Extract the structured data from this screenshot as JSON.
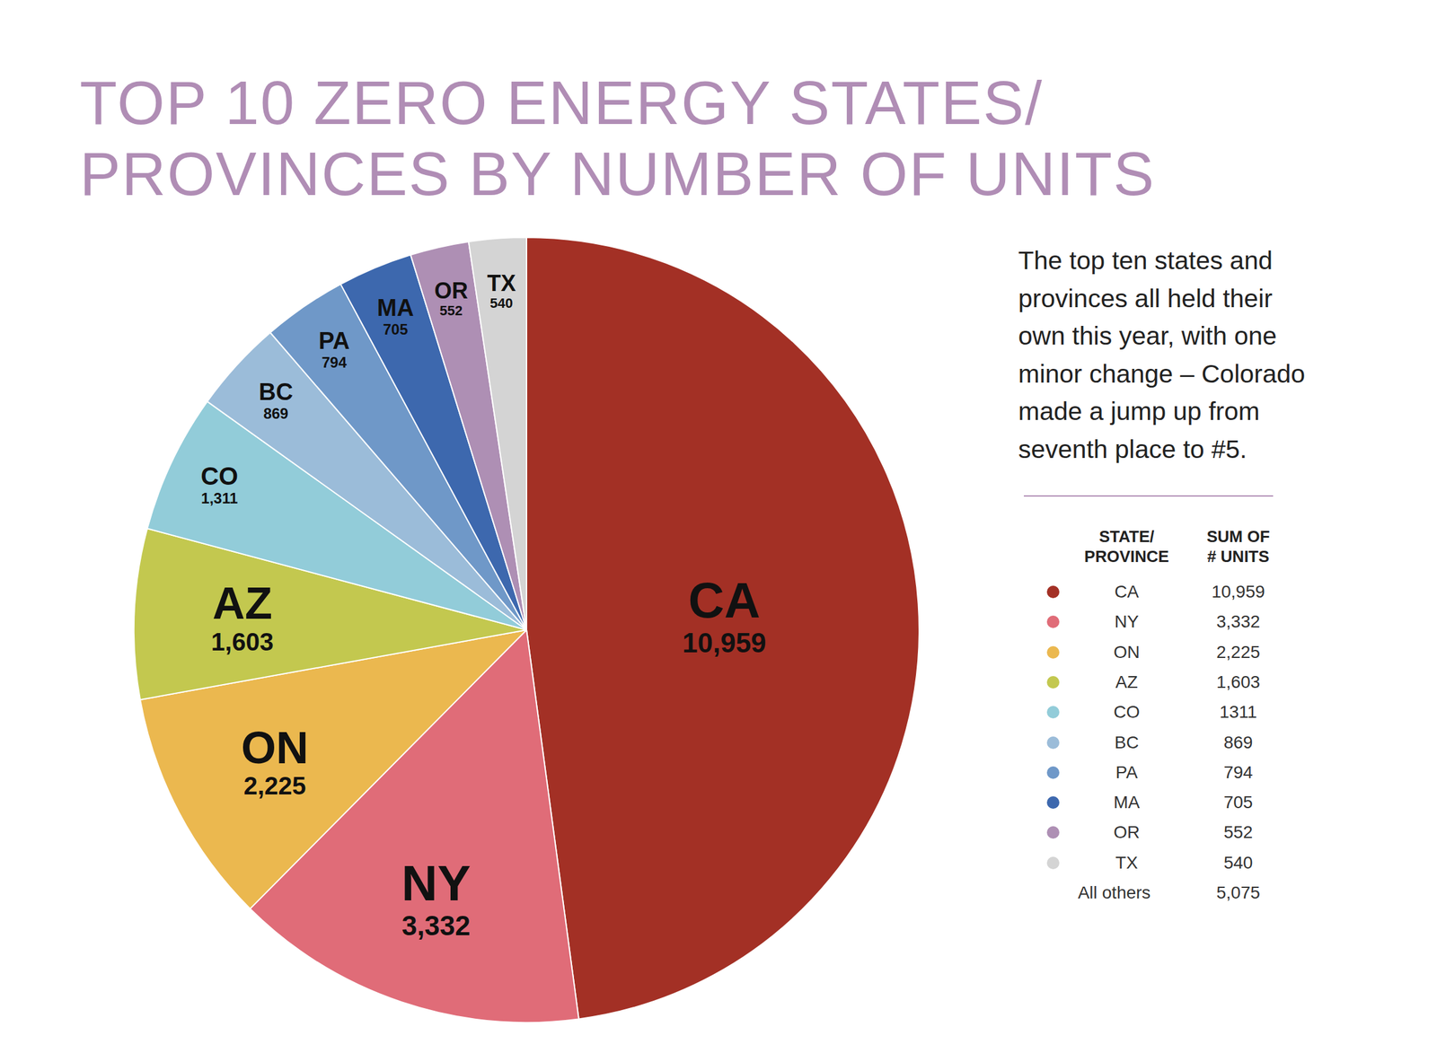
{
  "chart_data": {
    "type": "pie",
    "title": "TOP 10 ZERO ENERGY STATES/\nPROVINCES BY NUMBER OF UNITS",
    "annotation": "The top ten states and\nprovinces all held their\nown this year, with one\nminor change – Colorado\nmade a jump up from\nseventh place to #5.",
    "categories": [
      "CA",
      "NY",
      "ON",
      "AZ",
      "CO",
      "BC",
      "PA",
      "MA",
      "OR",
      "TX"
    ],
    "values": [
      10959,
      3332,
      2225,
      1603,
      1311,
      869,
      794,
      705,
      552,
      540
    ],
    "value_labels": [
      "10,959",
      "3,332",
      "2,225",
      "1,603",
      "1,311",
      "869",
      "794",
      "705",
      "552",
      "540"
    ],
    "colors": [
      "#a33025",
      "#e06c78",
      "#ebb84f",
      "#c3c84f",
      "#92ccd9",
      "#9bbcd9",
      "#6f98c8",
      "#3d68ae",
      "#ae8fb4",
      "#d4d4d4"
    ],
    "data_labels": true,
    "legend_table": {
      "header": [
        "STATE/\nPROVINCE",
        "SUM OF\n# UNITS"
      ],
      "rows": [
        [
          "CA",
          "10,959"
        ],
        [
          "NY",
          "3,332"
        ],
        [
          "ON",
          "2,225"
        ],
        [
          "AZ",
          "1,603"
        ],
        [
          "CO",
          "1311"
        ],
        [
          "BC",
          "869"
        ],
        [
          "PA",
          "794"
        ],
        [
          "MA",
          "705"
        ],
        [
          "OR",
          "552"
        ],
        [
          "TX",
          "540"
        ],
        [
          "All others",
          "5,075"
        ]
      ]
    }
  }
}
